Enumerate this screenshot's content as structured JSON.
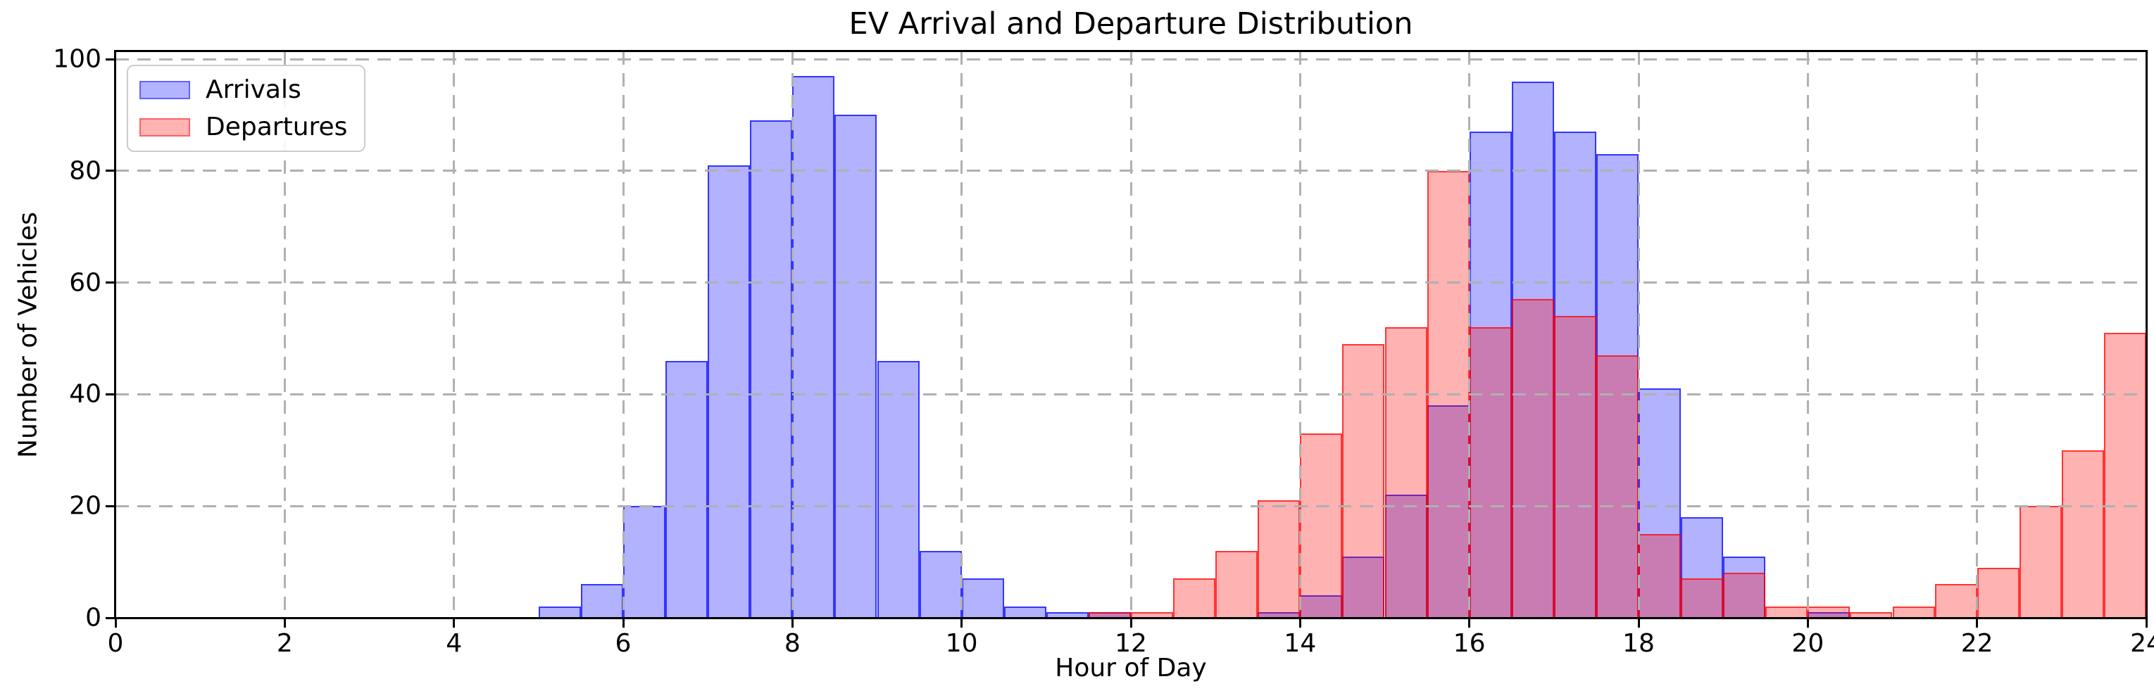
{
  "title": "EV Arrival and Departure Distribution",
  "axes": {
    "xlabel": "Hour of Day",
    "ylabel": "Number of Vehicles",
    "x_ticks": [
      0,
      2,
      4,
      6,
      8,
      10,
      12,
      14,
      16,
      18,
      20,
      22,
      24
    ],
    "y_ticks": [
      0,
      20,
      40,
      60,
      80,
      100
    ],
    "xlim": [
      0,
      24
    ],
    "ylim": [
      0,
      101.4
    ],
    "grid": "dashed",
    "grid_color": "#b0b0b0"
  },
  "legend": {
    "position": "upper-left",
    "items": [
      {
        "label": "Arrivals",
        "fill": "#b3b3ff",
        "edge": "#6161ff"
      },
      {
        "label": "Departures",
        "fill": "#ffb3b3",
        "edge": "#ff6161"
      }
    ]
  },
  "chart_data": {
    "type": "bar",
    "subtype": "overlapping-histogram",
    "title": "EV Arrival and Departure Distribution",
    "xlabel": "Hour of Day",
    "ylabel": "Number of Vehicles",
    "xlim": [
      0,
      24
    ],
    "ylim": [
      0,
      101.4
    ],
    "bin_width": 0.5,
    "series": [
      {
        "name": "Arrivals",
        "base_color": "#0000ff",
        "fill_alpha": 0.3,
        "edge_alpha": 0.7,
        "bin_start": 5.0,
        "values": [
          2,
          6,
          20,
          46,
          81,
          89,
          97,
          90,
          46,
          12,
          7,
          2,
          1,
          1,
          0,
          0,
          0,
          1,
          4,
          11,
          22,
          38,
          87,
          96,
          87,
          83,
          41,
          18,
          11,
          0,
          1
        ]
      },
      {
        "name": "Departures",
        "base_color": "#ff0000",
        "fill_alpha": 0.3,
        "edge_alpha": 0.7,
        "bin_start": 11.5,
        "values": [
          1,
          1,
          7,
          12,
          21,
          33,
          49,
          52,
          80,
          52,
          57,
          54,
          47,
          15,
          7,
          8,
          2,
          2,
          1,
          2,
          6,
          9,
          20,
          30,
          51
        ]
      }
    ]
  }
}
